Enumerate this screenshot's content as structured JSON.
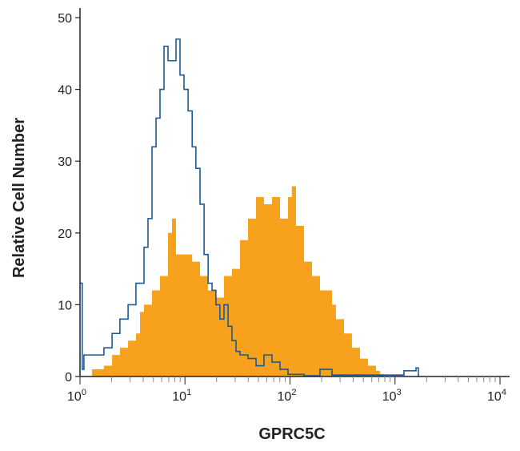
{
  "chart_data": {
    "type": "area",
    "title": "",
    "xlabel": "GPRC5C",
    "ylabel": "Relative Cell Number",
    "x_scale": "log",
    "xlim": [
      1,
      10000
    ],
    "ylim": [
      0,
      50
    ],
    "x_ticks": [
      {
        "base": "10",
        "exp": "0",
        "value": 1
      },
      {
        "base": "10",
        "exp": "1",
        "value": 10
      },
      {
        "base": "10",
        "exp": "2",
        "value": 100
      },
      {
        "base": "10",
        "exp": "3",
        "value": 1000
      },
      {
        "base": "10",
        "exp": "4",
        "value": 10000
      }
    ],
    "y_ticks": [
      "0",
      "10",
      "20",
      "30",
      "40",
      "50"
    ],
    "grid": false,
    "series": [
      {
        "style": "filled-step",
        "color": "#f7a11d",
        "x": [
          1.3,
          1.69,
          2.02,
          2.4,
          2.87,
          3.41,
          3.73,
          4.07,
          4.85,
          5.78,
          6.89,
          7.52,
          8.21,
          9.78,
          11.7,
          13.9,
          16.6,
          19.7,
          23.5,
          28.0,
          33.4,
          39.8,
          47.5,
          56.5,
          67.4,
          80.3,
          95.7,
          104,
          114,
          136,
          162,
          193,
          230,
          251,
          274,
          327,
          389,
          464,
          553,
          659,
          719,
          785
        ],
        "y": [
          1,
          1.5,
          3,
          4,
          5,
          6,
          9,
          10,
          12,
          14,
          20,
          22,
          17,
          17,
          16,
          14,
          12,
          11,
          14,
          15,
          19,
          22,
          25,
          24,
          25,
          22,
          25,
          26.5,
          21,
          16,
          14,
          12,
          12,
          10,
          8,
          6,
          4,
          2.5,
          1.5,
          0.8,
          0.3,
          0
        ]
      },
      {
        "style": "outline-step",
        "color": "#1a5a96",
        "x": [
          1,
          1.05,
          1.09,
          1.42,
          1.69,
          2.02,
          2.4,
          2.87,
          3.41,
          4.07,
          4.44,
          4.85,
          5.3,
          5.78,
          6.31,
          6.89,
          7.52,
          8.21,
          8.96,
          9.78,
          10.7,
          11.7,
          12.7,
          13.9,
          15.2,
          16.6,
          18.1,
          19.7,
          21.5,
          23.5,
          25.7,
          28.0,
          30.6,
          33.4,
          39.8,
          47.5,
          56.5,
          67.4,
          80.3,
          95.7,
          136,
          193,
          251,
          785,
          1218,
          1585,
          1670
        ],
        "y": [
          13,
          1,
          3,
          3,
          4,
          6,
          8,
          10,
          13,
          18,
          22,
          32,
          36,
          40,
          46,
          44,
          44,
          47,
          42,
          40,
          37,
          32,
          29,
          24,
          17,
          13,
          12,
          10,
          8,
          10,
          7,
          5,
          3.5,
          3,
          2.5,
          1.5,
          3,
          2,
          1,
          0.3,
          0.1,
          1,
          0.2,
          0.2,
          0.8,
          1.2,
          0
        ]
      }
    ]
  }
}
